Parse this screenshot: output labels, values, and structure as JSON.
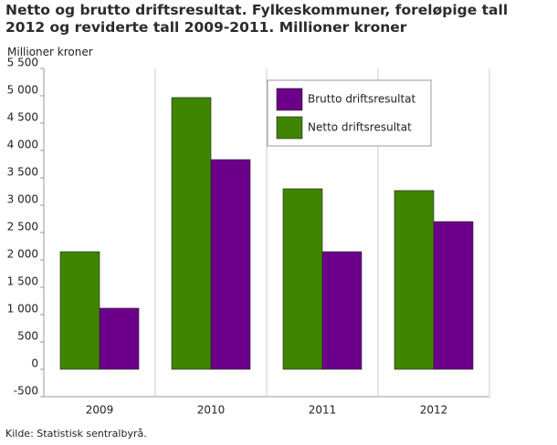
{
  "chart_data": {
    "type": "bar",
    "title": "Netto og brutto driftsresultat. Fylkeskommuner, foreløpige tall 2012 og reviderte tall 2009-2011. Millioner kroner",
    "y_label": "Millioner kroner",
    "source": "Kilde: Statistisk sentralbyrå.",
    "categories": [
      "2009",
      "2010",
      "2011",
      "2012"
    ],
    "series": [
      {
        "name": "Netto driftsresultat",
        "color": "#3f8500",
        "values": [
          2150,
          4967,
          3300,
          3267
        ]
      },
      {
        "name": "Brutto driftsresultat",
        "color": "#6d008a",
        "values": [
          1117,
          3833,
          2150,
          2700
        ]
      }
    ],
    "ylim": [
      -500,
      5500
    ],
    "yticks": [
      -500,
      0,
      500,
      {
        "value": 1000,
        "label": "1 000"
      },
      {
        "value": 1500,
        "label": "1 500"
      },
      {
        "value": 2000,
        "label": "2 000"
      },
      {
        "value": 2500,
        "label": "2 500"
      },
      {
        "value": 3000,
        "label": "3 000"
      },
      {
        "value": 3500,
        "label": "3 500"
      },
      {
        "value": 4000,
        "label": "4 000"
      },
      {
        "value": 4500,
        "label": "4 500"
      },
      {
        "value": 5000,
        "label": "5 000"
      },
      {
        "value": 5500,
        "label": "5 500"
      }
    ],
    "legend_position": "upper right"
  }
}
